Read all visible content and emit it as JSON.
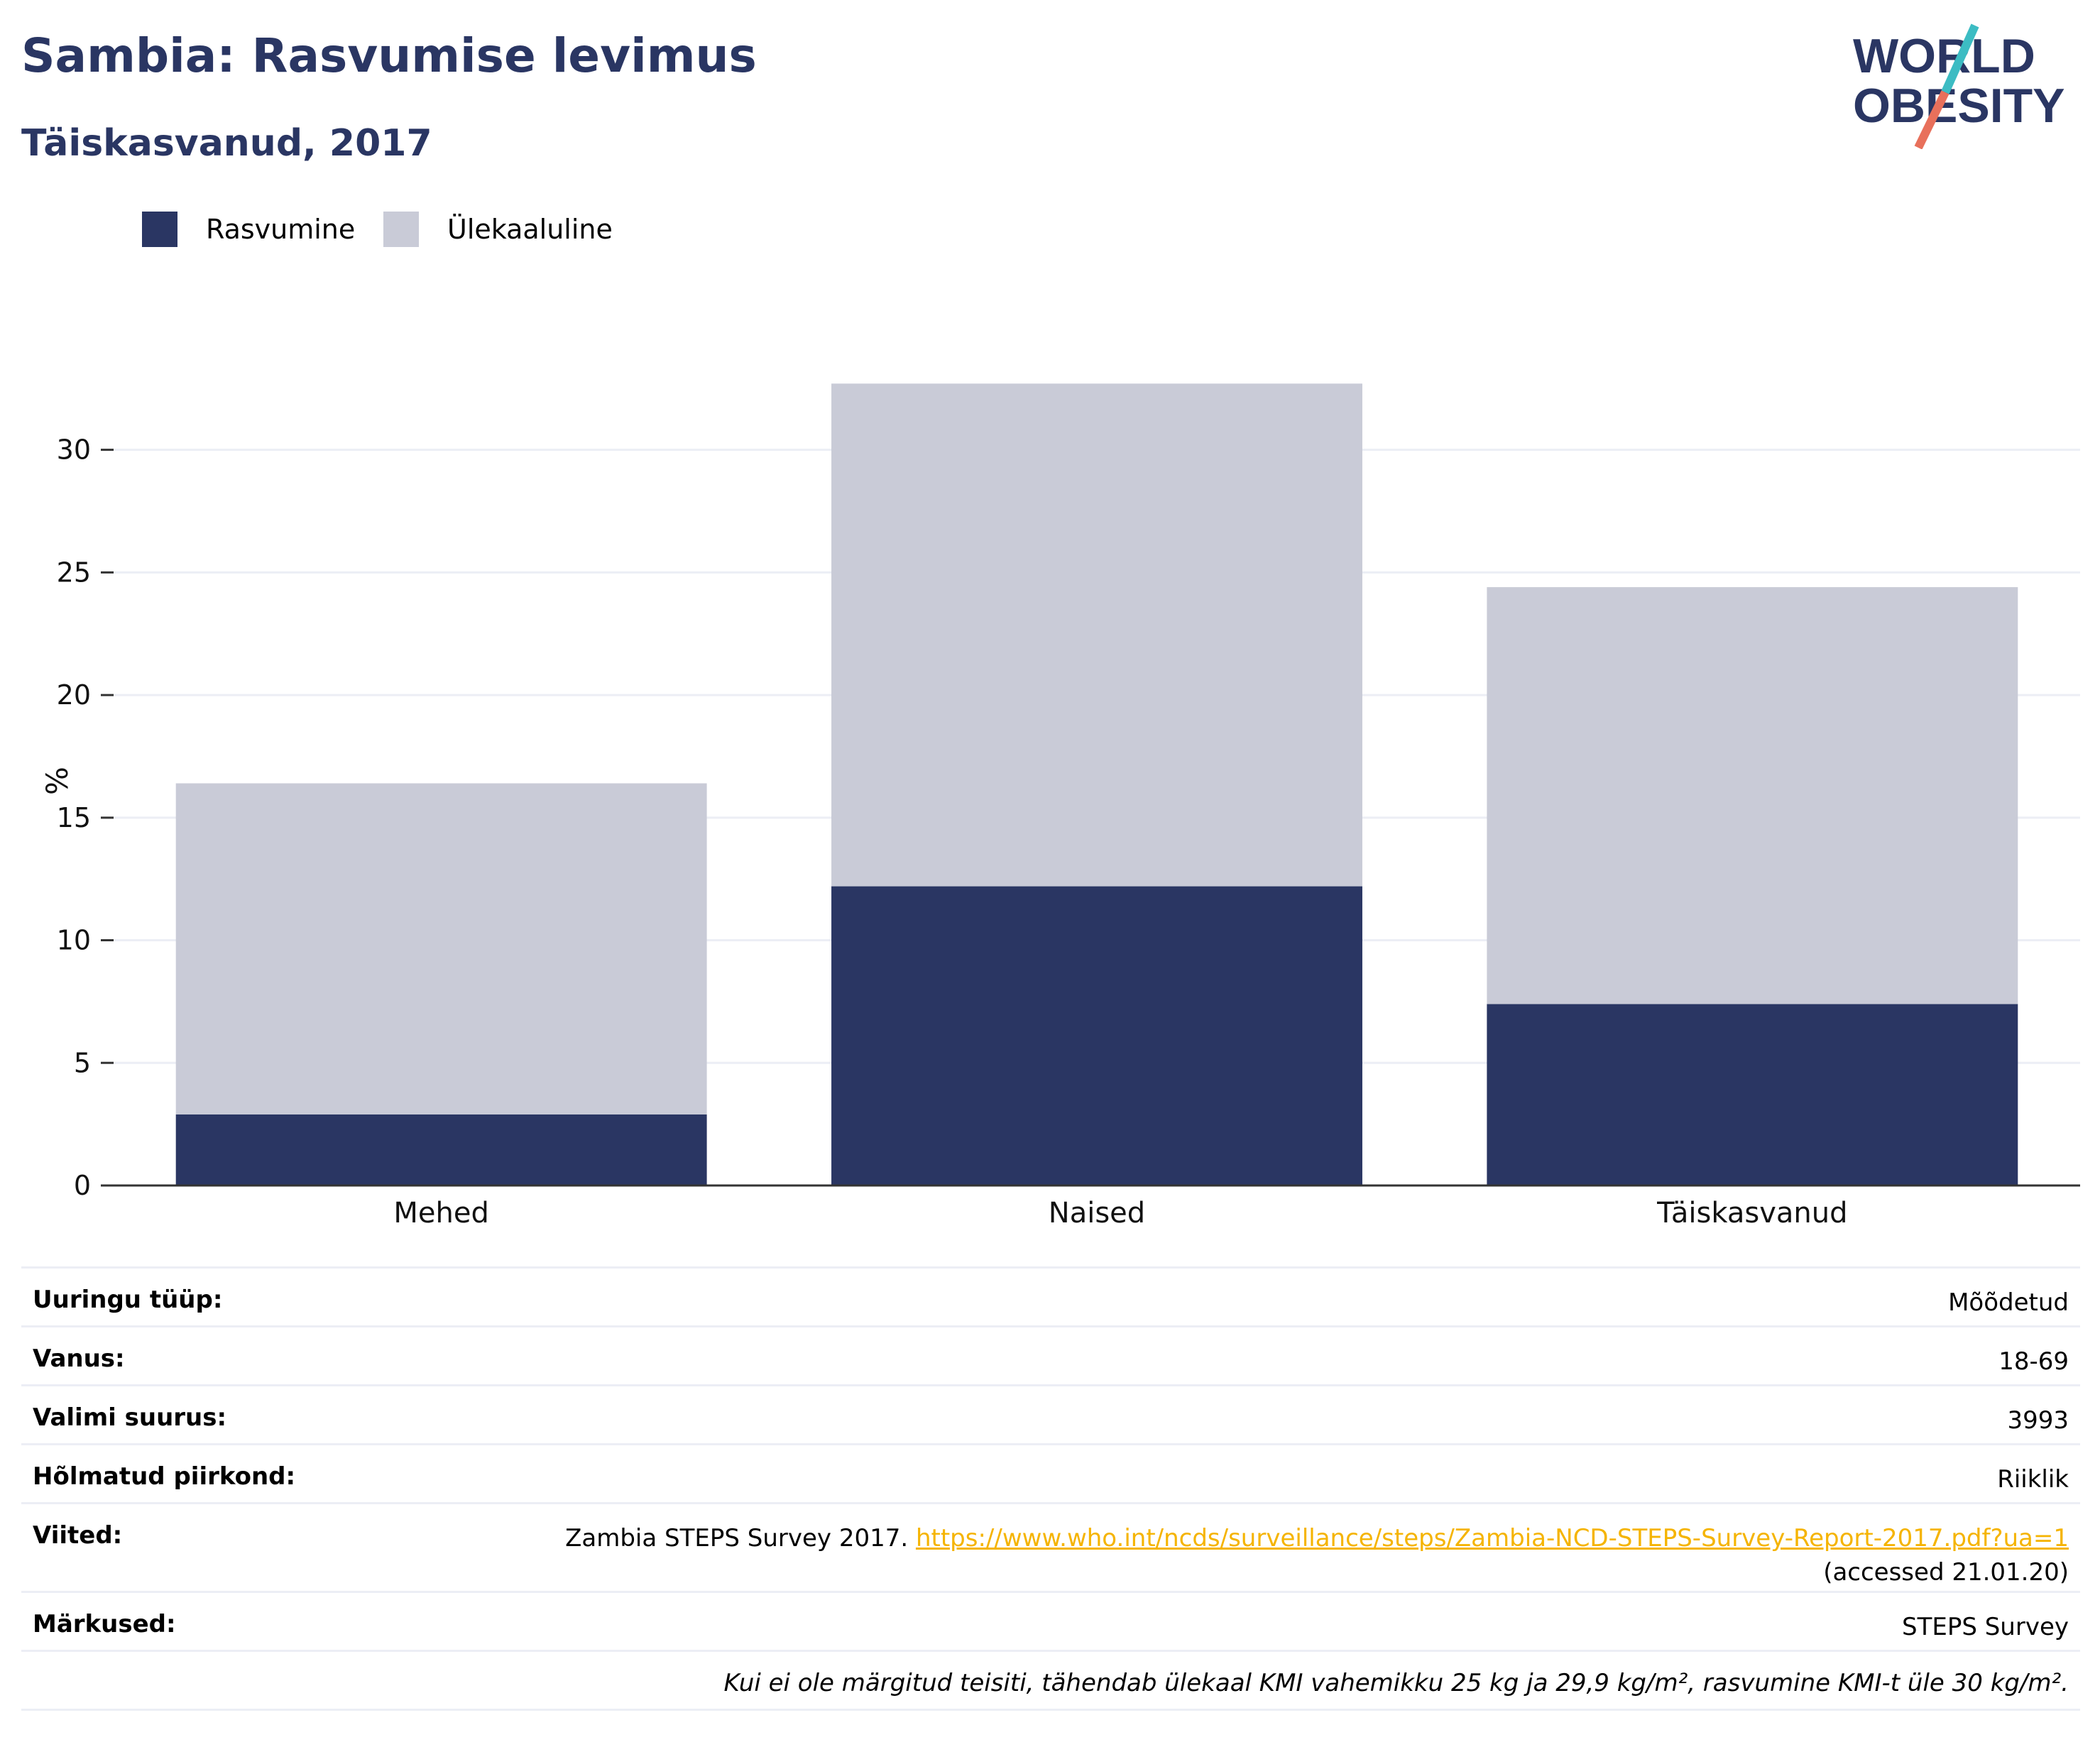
{
  "header": {
    "title": "Sambia: Rasvumise levimus",
    "subtitle": "Täiskasvanud, 2017"
  },
  "logo": {
    "line1": "WORLD",
    "line2": "OBESITY",
    "text_color": "#2a3663",
    "slash_colors": [
      "#3cbcc3",
      "#e8705b"
    ]
  },
  "legend": [
    {
      "label": "Rasvumine",
      "color": "#2a3663"
    },
    {
      "label": "Ülekaaluline",
      "color": "#c9cbd7"
    }
  ],
  "chart_data": {
    "type": "bar",
    "stacked": true,
    "categories": [
      "Mehed",
      "Naised",
      "Täiskasvanud"
    ],
    "series": [
      {
        "name": "Rasvumine",
        "values": [
          2.9,
          12.2,
          7.4
        ],
        "color": "#2a3663"
      },
      {
        "name": "Ülekaaluline",
        "values": [
          13.5,
          20.5,
          17.0
        ],
        "color": "#c9cbd7"
      }
    ],
    "ylabel": "%",
    "xlabel": "",
    "ylim": [
      0,
      33
    ],
    "yticks": [
      0,
      5,
      10,
      15,
      20,
      25,
      30
    ],
    "grid": true
  },
  "info": [
    {
      "label": "Uuringu tüüp:",
      "value": "Mõõdetud"
    },
    {
      "label": "Vanus:",
      "value": "18-69"
    },
    {
      "label": "Valimi suurus:",
      "value": "3993"
    },
    {
      "label": "Hõlmatud piirkond:",
      "value": "Riiklik"
    },
    {
      "label": "Viited:",
      "value_prefix": "Zambia STEPS Survey 2017. ",
      "link": "https://www.who.int/ncds/surveillance/steps/Zambia-NCD-STEPS-Survey-Report-2017.pdf?ua=1",
      "value_suffix": "(accessed 21.01.20)"
    },
    {
      "label": "Märkused:",
      "value": "STEPS Survey"
    }
  ],
  "footnote": "Kui ei ole märgitud teisiti, tähendab ülekaal KMI vahemikku 25 kg ja 29,9 kg/m², rasvumine KMI-t üle 30 kg/m²."
}
